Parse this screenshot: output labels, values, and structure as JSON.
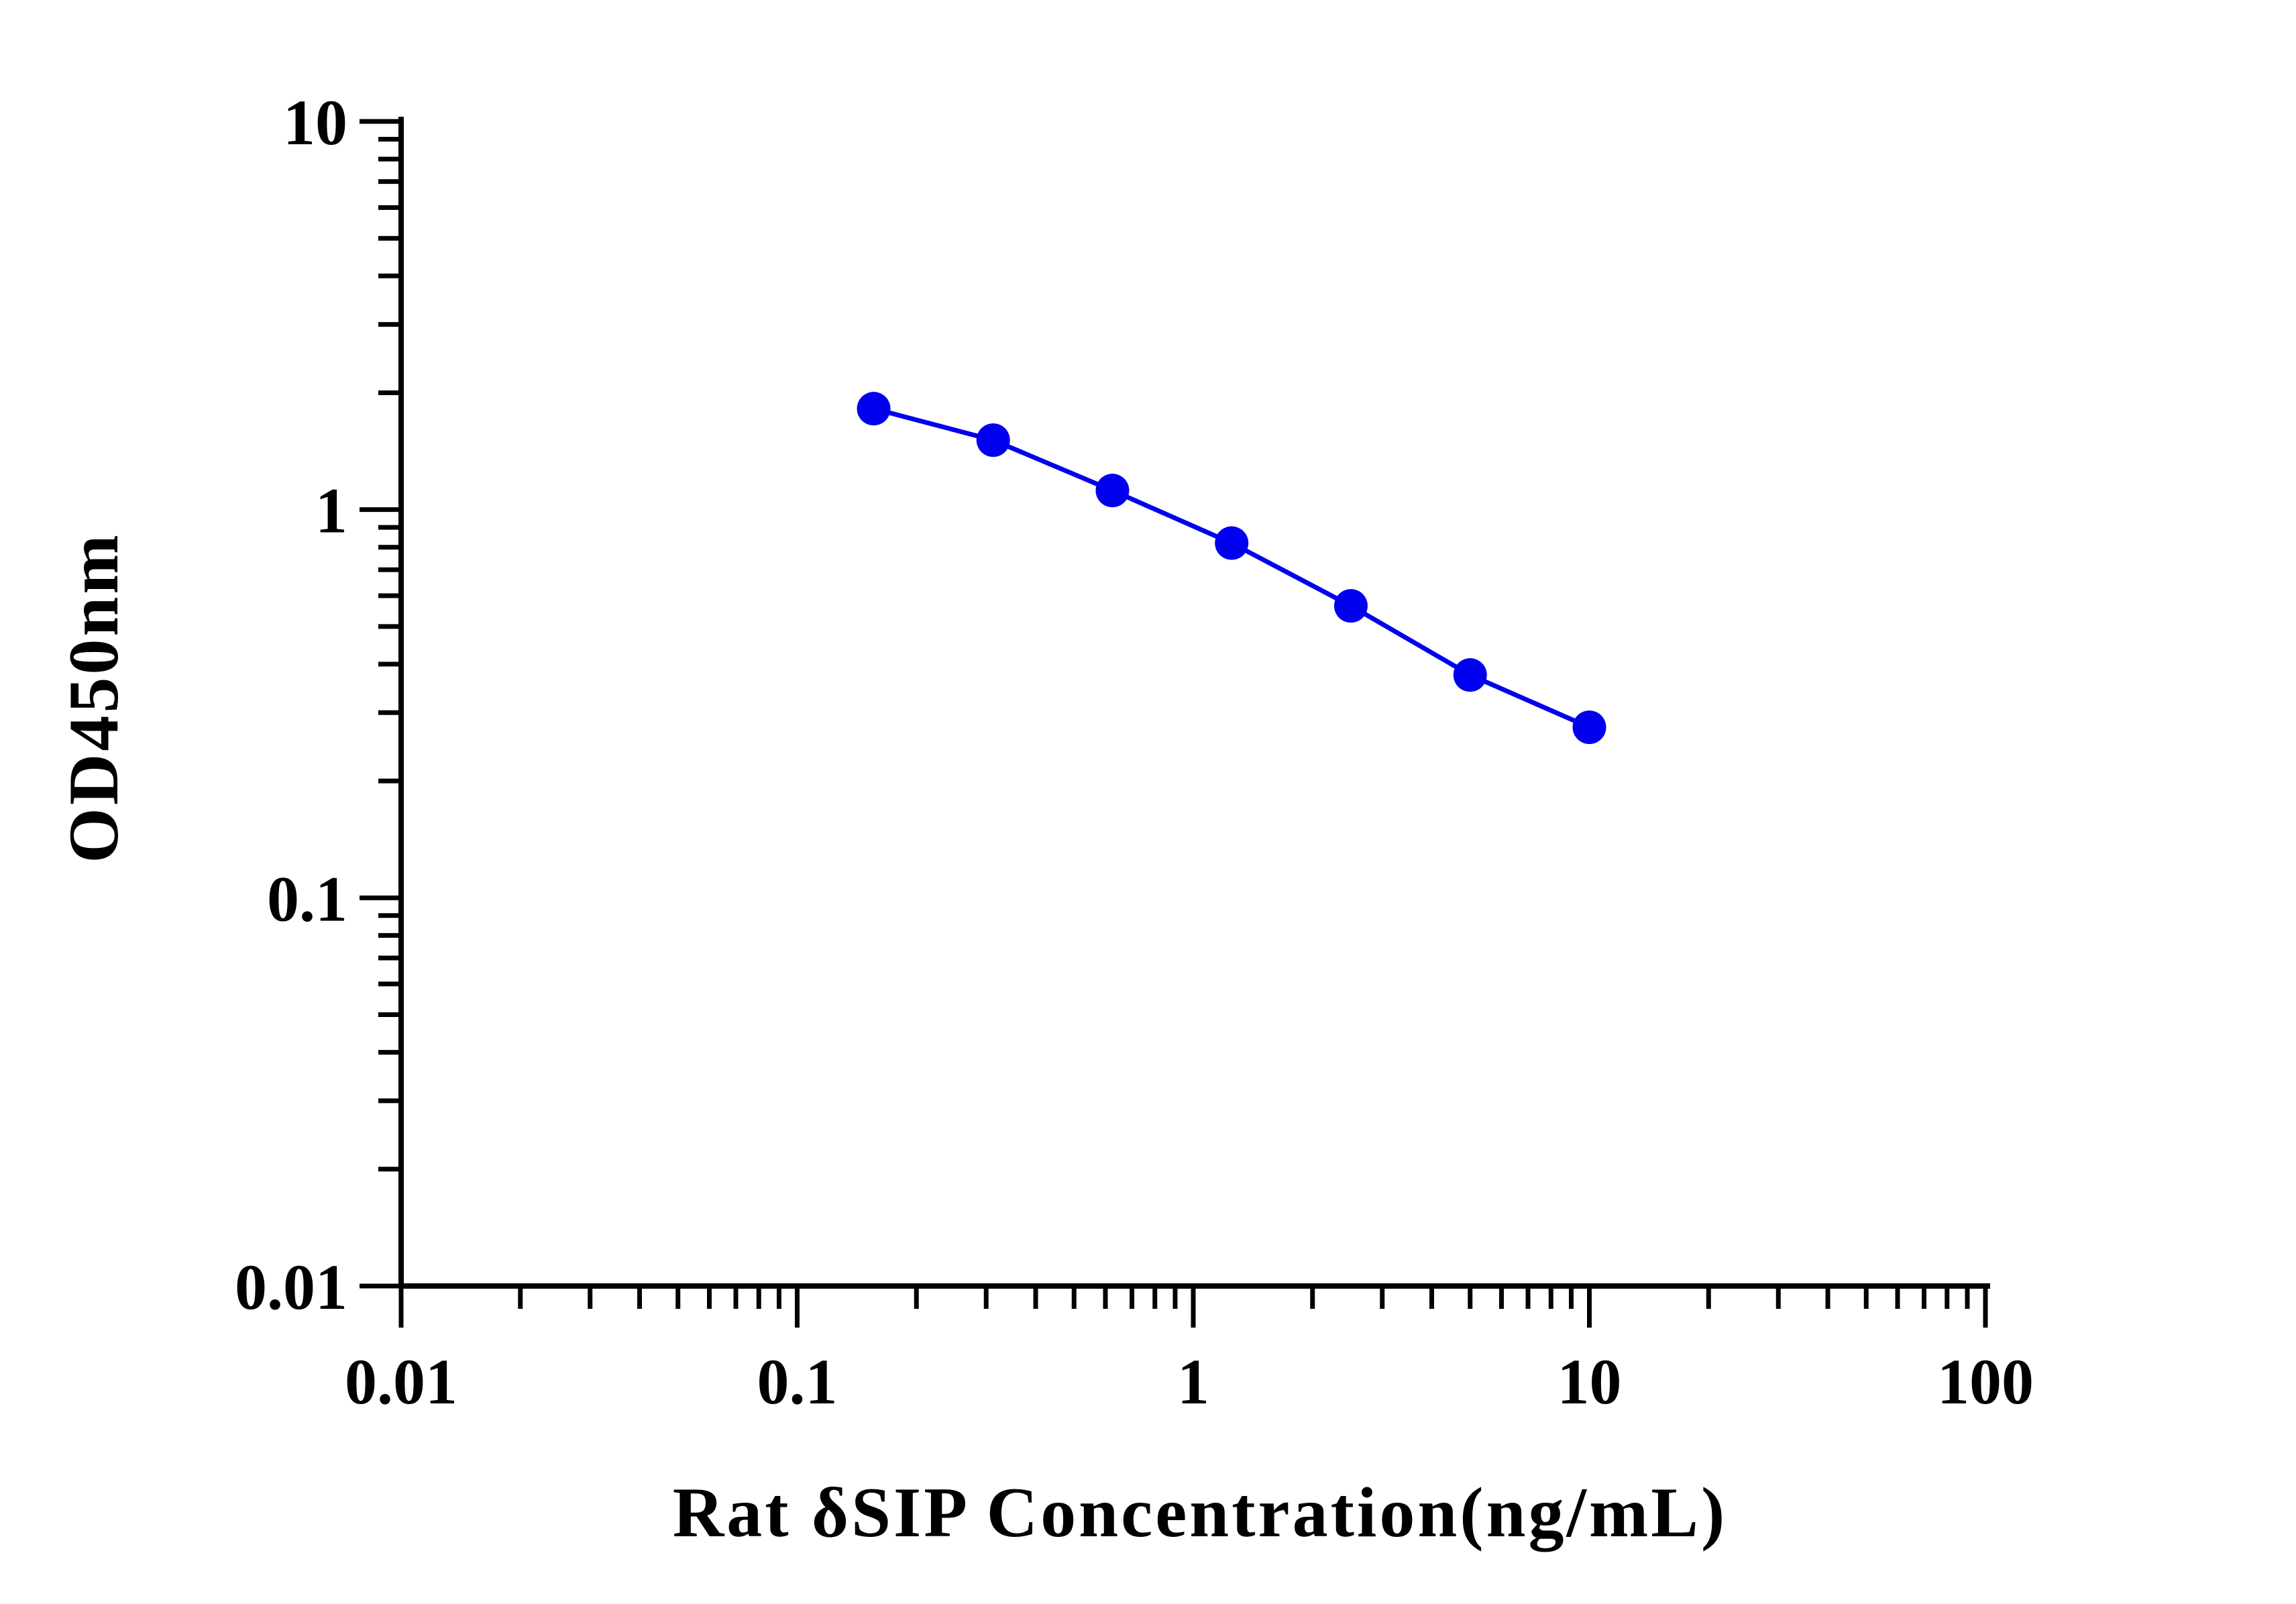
{
  "chart_data": {
    "type": "line",
    "xscale": "log",
    "yscale": "log",
    "xlim": [
      0.01,
      100
    ],
    "ylim": [
      0.01,
      10
    ],
    "xlabel": "Rat δSIP Concentration(ng/mL)",
    "ylabel": "OD450nm",
    "xticks": [
      "0.01",
      "0.1",
      "1",
      "10",
      "100"
    ],
    "yticks": [
      "0.01",
      "0.1",
      "1",
      "10"
    ],
    "grid": false,
    "series": [
      {
        "color": "#0000ee",
        "marker": "circle",
        "x": [
          0.156,
          0.3125,
          0.625,
          1.25,
          2.5,
          5,
          10
        ],
        "y": [
          1.82,
          1.51,
          1.12,
          0.82,
          0.565,
          0.375,
          0.275
        ]
      }
    ]
  }
}
